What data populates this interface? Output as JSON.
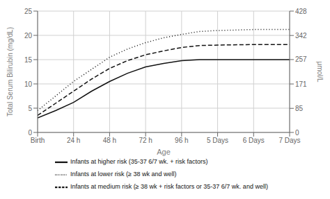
{
  "chart_data": {
    "type": "line",
    "xlabel": "Age",
    "ylabel": "Total Serum Bilirubin  (mg/dL)",
    "y2label": "μmol/L",
    "x": [
      0,
      12,
      24,
      36,
      48,
      60,
      72,
      84,
      96,
      108,
      120,
      144,
      168
    ],
    "xlim": [
      0,
      168
    ],
    "xticks": [
      {
        "value": 0,
        "label": "Birth"
      },
      {
        "value": 24,
        "label": "24 h"
      },
      {
        "value": 48,
        "label": "48 h"
      },
      {
        "value": 72,
        "label": "72 h"
      },
      {
        "value": 96,
        "label": "96 h"
      },
      {
        "value": 120,
        "label": "5 Days"
      },
      {
        "value": 144,
        "label": "6 Days"
      },
      {
        "value": 168,
        "label": "7 Days"
      }
    ],
    "ylim": [
      0,
      25
    ],
    "yticks": [
      0,
      5,
      10,
      15,
      20,
      25
    ],
    "y2lim": [
      0,
      428
    ],
    "y2ticks": [
      0,
      85,
      171,
      257,
      342,
      428
    ],
    "grid": true,
    "legend": "bottom",
    "series": [
      {
        "name": "Infants at lower risk (≥ 38 wk and well)",
        "color": "#111111",
        "line_style": "dotted",
        "values": [
          4.5,
          7.5,
          10.5,
          13.0,
          15.5,
          17.2,
          18.5,
          19.5,
          20.2,
          20.8,
          21.0,
          21.2,
          21.2
        ]
      },
      {
        "name": "Infants at medium risk (≥ 38 wk + risk factors or 35-37 6/7 wk. and well)",
        "color": "#111111",
        "line_style": "dashed",
        "values": [
          3.5,
          6.0,
          8.5,
          11.0,
          13.2,
          14.8,
          16.0,
          16.8,
          17.5,
          17.9,
          18.0,
          18.1,
          18.1
        ]
      },
      {
        "name": "Infants at higher risk (35-37 6/7 wk. + risk factors)",
        "color": "#111111",
        "line_style": "solid",
        "values": [
          3.0,
          4.5,
          6.2,
          8.5,
          10.5,
          12.2,
          13.5,
          14.2,
          14.8,
          15.0,
          15.0,
          15.0,
          15.0
        ]
      }
    ]
  }
}
